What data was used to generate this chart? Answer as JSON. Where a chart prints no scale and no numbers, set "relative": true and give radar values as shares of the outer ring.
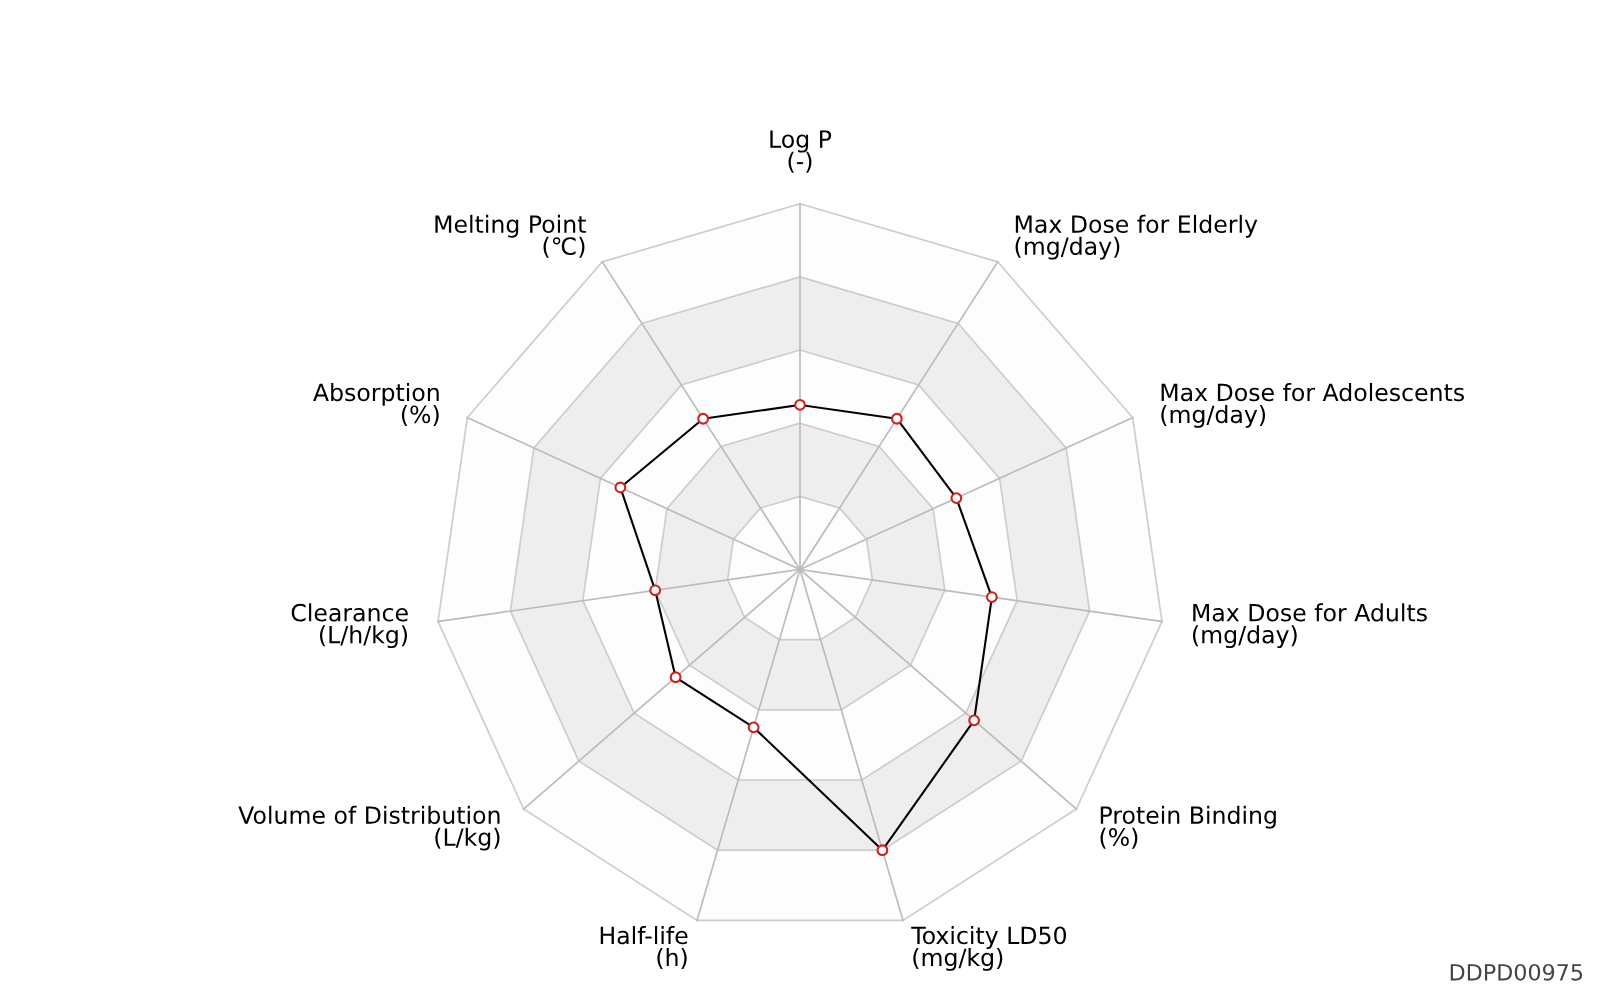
{
  "chart_data": {
    "type": "radar",
    "relative": true,
    "grid": true,
    "marker": "circle",
    "line_style": "solid",
    "categories": [
      "Log P\n(-)",
      "Max Dose for Elderly\n(mg/day)",
      "Max Dose for Adolescents\n(mg/day)",
      "Max Dose for Adults\n(mg/day)",
      "Protein Binding\n(%)",
      "Toxicity LD50\n(mg/kg)",
      "Half-life\n(h)",
      "Volume of Distribution\n(L/kg)",
      "Clearance\n(L/h/kg)",
      "Absorption\n(%)",
      "Melting Point\n(℃)"
    ],
    "series": [
      {
        "color": "#000000",
        "values": [
          0.45,
          0.49,
          0.47,
          0.53,
          0.63,
          0.8,
          0.45,
          0.45,
          0.4,
          0.54,
          0.49
        ]
      }
    ],
    "annotations": [
      "DDPD00975"
    ]
  }
}
